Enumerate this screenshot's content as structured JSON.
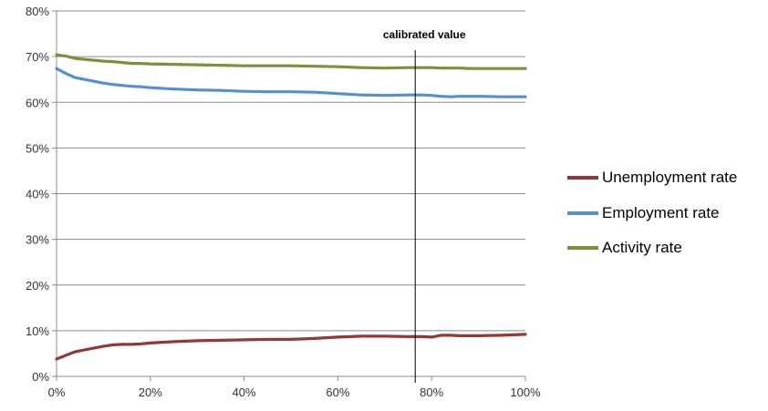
{
  "chart_data": {
    "type": "line",
    "title": "",
    "xlabel": "",
    "ylabel": "",
    "xlim": [
      0,
      100
    ],
    "ylim": [
      0,
      80
    ],
    "x_ticks": [
      "0%",
      "20%",
      "40%",
      "60%",
      "80%",
      "100%"
    ],
    "y_ticks": [
      "0%",
      "10%",
      "20%",
      "30%",
      "40%",
      "50%",
      "60%",
      "70%",
      "80%"
    ],
    "grid": "horizontal",
    "legend_position": "right",
    "x": [
      0,
      2,
      4,
      6,
      8,
      10,
      12,
      14,
      16,
      18,
      20,
      25,
      30,
      35,
      40,
      45,
      50,
      55,
      60,
      65,
      70,
      75,
      78,
      80,
      82,
      84,
      86,
      88,
      90,
      95,
      100
    ],
    "series": [
      {
        "name": "Unemployment rate",
        "color": "#953735",
        "values": [
          3.8,
          4.6,
          5.4,
          5.8,
          6.2,
          6.6,
          6.9,
          7.0,
          7.0,
          7.1,
          7.3,
          7.6,
          7.8,
          7.9,
          8.0,
          8.1,
          8.1,
          8.3,
          8.6,
          8.8,
          8.8,
          8.7,
          8.7,
          8.6,
          9.0,
          9.0,
          8.9,
          8.9,
          8.9,
          9.0,
          9.2
        ]
      },
      {
        "name": "Employment rate",
        "color": "#558ED5",
        "values": [
          67.4,
          66.3,
          65.4,
          65.0,
          64.6,
          64.2,
          63.9,
          63.7,
          63.5,
          63.4,
          63.2,
          62.9,
          62.7,
          62.6,
          62.4,
          62.3,
          62.3,
          62.2,
          61.9,
          61.6,
          61.5,
          61.6,
          61.6,
          61.5,
          61.3,
          61.2,
          61.3,
          61.3,
          61.3,
          61.2,
          61.2
        ]
      },
      {
        "name": "Activity rate",
        "color": "#77933C",
        "values": [
          70.4,
          70.1,
          69.6,
          69.4,
          69.2,
          69.0,
          68.9,
          68.7,
          68.5,
          68.5,
          68.4,
          68.3,
          68.2,
          68.1,
          68.0,
          68.0,
          68.0,
          67.9,
          67.8,
          67.6,
          67.5,
          67.6,
          67.6,
          67.6,
          67.5,
          67.5,
          67.5,
          67.4,
          67.4,
          67.4,
          67.4
        ]
      }
    ],
    "annotations": [
      {
        "text": "calibrated value",
        "x": 76.5
      }
    ]
  }
}
